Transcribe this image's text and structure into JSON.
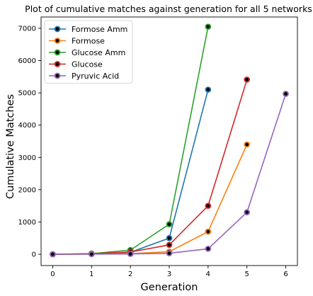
{
  "chart_data": {
    "type": "line",
    "title": "Plot of cumulative matches against generation for all 5 networks",
    "xlabel": "Generation",
    "ylabel": "Cumulative Matches",
    "xlim": [
      -0.3,
      6.3
    ],
    "ylim": [
      -350,
      7350
    ],
    "xticks": [
      0,
      1,
      2,
      3,
      4,
      5,
      6
    ],
    "yticks": [
      0,
      1000,
      2000,
      3000,
      4000,
      5000,
      6000,
      7000
    ],
    "grid": false,
    "legend_position": "top-left",
    "series": [
      {
        "name": "Formose Amm",
        "color": "#1f77b4",
        "x": [
          0,
          1,
          2,
          3,
          4
        ],
        "values": [
          0,
          10,
          60,
          500,
          5100
        ]
      },
      {
        "name": "Formose",
        "color": "#ff7f0e",
        "x": [
          0,
          1,
          2,
          3,
          4,
          5
        ],
        "values": [
          0,
          5,
          20,
          80,
          700,
          3400
        ]
      },
      {
        "name": "Glucose Amm",
        "color": "#2ca02c",
        "x": [
          0,
          1,
          2,
          3,
          4
        ],
        "values": [
          0,
          20,
          130,
          930,
          7050
        ]
      },
      {
        "name": "Glucose",
        "color": "#d62728",
        "x": [
          0,
          1,
          2,
          3,
          4,
          5
        ],
        "values": [
          0,
          15,
          70,
          290,
          1500,
          5410
        ]
      },
      {
        "name": "Pyruvic Acid",
        "color": "#9467bd",
        "x": [
          0,
          1,
          2,
          3,
          4,
          5,
          6
        ],
        "values": [
          0,
          3,
          10,
          30,
          170,
          1300,
          4970
        ]
      }
    ]
  }
}
